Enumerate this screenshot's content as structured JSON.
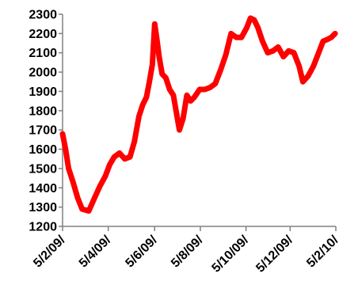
{
  "chart_data": {
    "type": "line",
    "title": "",
    "xlabel": "",
    "ylabel": "",
    "ylim": [
      1200,
      2300
    ],
    "yticks": [
      1200,
      1300,
      1400,
      1500,
      1600,
      1700,
      1800,
      1900,
      2000,
      2100,
      2200,
      2300
    ],
    "xlim": [
      "2009-05-02",
      "2010-05-02"
    ],
    "xticks": [
      {
        "date": "2009-05-02",
        "label": "5/2/09/"
      },
      {
        "date": "2009-07-02",
        "label": "5/4/09/"
      },
      {
        "date": "2009-09-02",
        "label": "5/6/09/"
      },
      {
        "date": "2009-11-02",
        "label": "5/8/09/"
      },
      {
        "date": "2010-01-02",
        "label": "5/10/09/"
      },
      {
        "date": "2010-03-02",
        "label": "5/12/09/"
      },
      {
        "date": "2010-05-02",
        "label": "5/2/10/"
      }
    ],
    "grid": false,
    "legend": "none",
    "series": [
      {
        "color": "#ff0000",
        "points": [
          [
            "2009-05-02",
            1680
          ],
          [
            "2009-05-06",
            1600
          ],
          [
            "2009-05-10",
            1500
          ],
          [
            "2009-05-16",
            1430
          ],
          [
            "2009-05-22",
            1350
          ],
          [
            "2009-05-28",
            1290
          ],
          [
            "2009-06-06",
            1280
          ],
          [
            "2009-06-14",
            1350
          ],
          [
            "2009-06-21",
            1410
          ],
          [
            "2009-06-28",
            1460
          ],
          [
            "2009-07-04",
            1520
          ],
          [
            "2009-07-10",
            1560
          ],
          [
            "2009-07-17",
            1580
          ],
          [
            "2009-07-24",
            1550
          ],
          [
            "2009-07-31",
            1560
          ],
          [
            "2009-08-06",
            1640
          ],
          [
            "2009-08-12",
            1770
          ],
          [
            "2009-08-17",
            1830
          ],
          [
            "2009-08-22",
            1870
          ],
          [
            "2009-08-26",
            1950
          ],
          [
            "2009-08-30",
            2040
          ],
          [
            "2009-09-02",
            2250
          ],
          [
            "2009-09-05",
            2170
          ],
          [
            "2009-09-08",
            2080
          ],
          [
            "2009-09-12",
            1990
          ],
          [
            "2009-09-17",
            1970
          ],
          [
            "2009-09-22",
            1910
          ],
          [
            "2009-09-27",
            1880
          ],
          [
            "2009-10-01",
            1790
          ],
          [
            "2009-10-05",
            1700
          ],
          [
            "2009-10-10",
            1760
          ],
          [
            "2009-10-15",
            1880
          ],
          [
            "2009-10-20",
            1850
          ],
          [
            "2009-10-25",
            1870
          ],
          [
            "2009-11-01",
            1910
          ],
          [
            "2009-11-08",
            1910
          ],
          [
            "2009-11-15",
            1920
          ],
          [
            "2009-11-22",
            1940
          ],
          [
            "2009-11-29",
            2010
          ],
          [
            "2009-12-06",
            2090
          ],
          [
            "2009-12-13",
            2200
          ],
          [
            "2009-12-20",
            2180
          ],
          [
            "2009-12-27",
            2180
          ],
          [
            "2010-01-03",
            2230
          ],
          [
            "2010-01-08",
            2280
          ],
          [
            "2010-01-13",
            2270
          ],
          [
            "2010-01-18",
            2230
          ],
          [
            "2010-01-24",
            2160
          ],
          [
            "2010-01-31",
            2100
          ],
          [
            "2010-02-07",
            2110
          ],
          [
            "2010-02-14",
            2130
          ],
          [
            "2010-02-21",
            2080
          ],
          [
            "2010-02-28",
            2110
          ],
          [
            "2010-03-07",
            2100
          ],
          [
            "2010-03-14",
            2030
          ],
          [
            "2010-03-19",
            1950
          ],
          [
            "2010-03-26",
            1980
          ],
          [
            "2010-04-02",
            2030
          ],
          [
            "2010-04-09",
            2100
          ],
          [
            "2010-04-15",
            2160
          ],
          [
            "2010-04-21",
            2170
          ],
          [
            "2010-04-26",
            2180
          ],
          [
            "2010-05-01",
            2200
          ]
        ]
      }
    ]
  }
}
